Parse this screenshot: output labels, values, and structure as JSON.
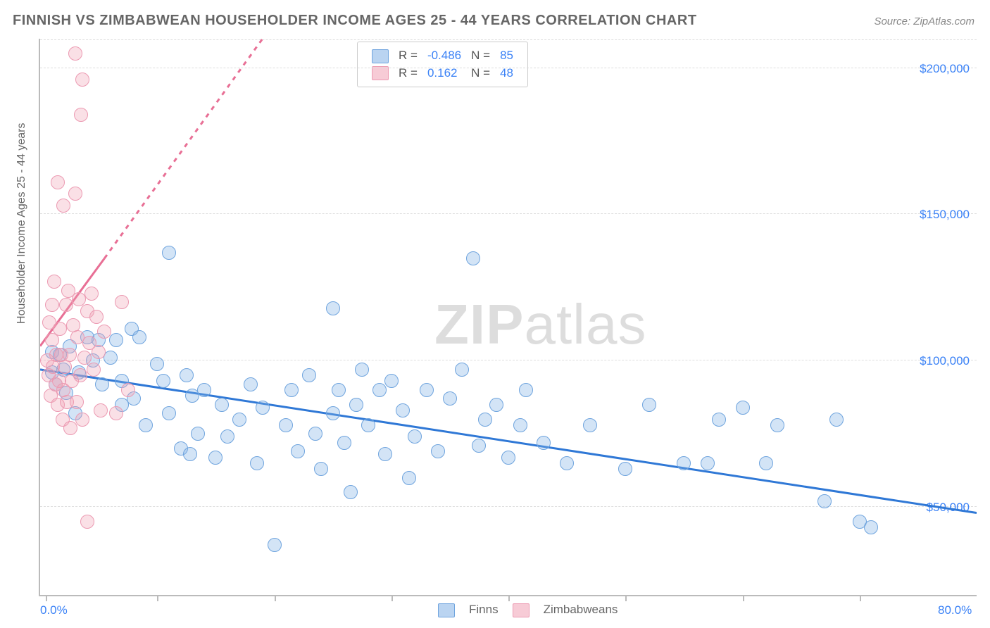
{
  "title": "FINNISH VS ZIMBABWEAN HOUSEHOLDER INCOME AGES 25 - 44 YEARS CORRELATION CHART",
  "source": "Source: ZipAtlas.com",
  "ylabel": "Householder Income Ages 25 - 44 years",
  "watermark_a": "ZIP",
  "watermark_b": "atlas",
  "chart": {
    "type": "scatter",
    "xlim": [
      0,
      80
    ],
    "ylim": [
      20000,
      210000
    ],
    "x_tick_positions": [
      0.5,
      10,
      20,
      30,
      40,
      50,
      60,
      70
    ],
    "x_axis_labels": [
      {
        "v": 0,
        "t": "0.0%"
      },
      {
        "v": 80,
        "t": "80.0%"
      }
    ],
    "y_gridlines": [
      50000,
      100000,
      150000,
      200000
    ],
    "y_axis_labels": [
      "$50,000",
      "$100,000",
      "$150,000",
      "$200,000"
    ],
    "colors": {
      "blue_fill": "#82b1e6",
      "blue_stroke": "#6fa4de",
      "pink_fill": "#f0a0b4",
      "pink_stroke": "#ec9ab2",
      "grid": "#dddddd",
      "axis": "#bbbbbb",
      "accent": "#3b82f6",
      "trend_blue": "#2f78d6",
      "trend_pink": "#e86f95"
    },
    "marker_radius": 9,
    "line_width": 3,
    "series": [
      {
        "name": "Finns",
        "key": "blue",
        "R": "-0.486",
        "N": "85",
        "trend": {
          "x1": 0,
          "y1": 97000,
          "x2": 80,
          "y2": 48000,
          "dashed": false
        },
        "points": [
          [
            1,
            96000
          ],
          [
            1,
            103000
          ],
          [
            1.3,
            92000
          ],
          [
            1.7,
            102000
          ],
          [
            2,
            97000
          ],
          [
            2.2,
            89000
          ],
          [
            2.5,
            105000
          ],
          [
            3,
            82000
          ],
          [
            3.3,
            96000
          ],
          [
            4,
            108000
          ],
          [
            4.5,
            100000
          ],
          [
            5,
            107000
          ],
          [
            5.3,
            92000
          ],
          [
            6,
            101000
          ],
          [
            6.5,
            107000
          ],
          [
            7,
            93000
          ],
          [
            7,
            85000
          ],
          [
            7.8,
            111000
          ],
          [
            8,
            87000
          ],
          [
            8.5,
            108000
          ],
          [
            9,
            78000
          ],
          [
            10,
            99000
          ],
          [
            10.5,
            93000
          ],
          [
            11,
            137000
          ],
          [
            11,
            82000
          ],
          [
            12,
            70000
          ],
          [
            12.5,
            95000
          ],
          [
            12.8,
            68000
          ],
          [
            13,
            88000
          ],
          [
            13.5,
            75000
          ],
          [
            14,
            90000
          ],
          [
            15,
            67000
          ],
          [
            15.5,
            85000
          ],
          [
            16,
            74000
          ],
          [
            17,
            80000
          ],
          [
            18,
            92000
          ],
          [
            18.5,
            65000
          ],
          [
            19,
            84000
          ],
          [
            20,
            37000
          ],
          [
            21,
            78000
          ],
          [
            21.5,
            90000
          ],
          [
            22,
            69000
          ],
          [
            23,
            95000
          ],
          [
            23.5,
            75000
          ],
          [
            24,
            63000
          ],
          [
            25,
            82000
          ],
          [
            25,
            118000
          ],
          [
            25.5,
            90000
          ],
          [
            26,
            72000
          ],
          [
            26.5,
            55000
          ],
          [
            27,
            85000
          ],
          [
            27.5,
            97000
          ],
          [
            28,
            78000
          ],
          [
            29,
            90000
          ],
          [
            29.5,
            68000
          ],
          [
            30,
            93000
          ],
          [
            31,
            83000
          ],
          [
            31.5,
            60000
          ],
          [
            32,
            74000
          ],
          [
            33,
            90000
          ],
          [
            34,
            69000
          ],
          [
            35,
            87000
          ],
          [
            36,
            97000
          ],
          [
            37,
            135000
          ],
          [
            37.5,
            71000
          ],
          [
            38,
            80000
          ],
          [
            39,
            85000
          ],
          [
            40,
            67000
          ],
          [
            41,
            78000
          ],
          [
            41.5,
            90000
          ],
          [
            43,
            72000
          ],
          [
            45,
            65000
          ],
          [
            47,
            78000
          ],
          [
            50,
            63000
          ],
          [
            52,
            85000
          ],
          [
            55,
            65000
          ],
          [
            57,
            65000
          ],
          [
            58,
            80000
          ],
          [
            60,
            84000
          ],
          [
            62,
            65000
          ],
          [
            63,
            78000
          ],
          [
            67,
            52000
          ],
          [
            68,
            80000
          ],
          [
            70,
            45000
          ],
          [
            71,
            43000
          ]
        ]
      },
      {
        "name": "Zimbabweans",
        "key": "pink",
        "R": "0.162",
        "N": "48",
        "trend": {
          "x1": 0,
          "y1": 105000,
          "x2": 5.5,
          "y2": 135000,
          "dashed": false,
          "dash_ext": {
            "x1": 5.5,
            "y1": 135000,
            "x2": 19,
            "y2": 210000
          }
        },
        "points": [
          [
            0.6,
            100000
          ],
          [
            0.7,
            95000
          ],
          [
            0.8,
            113000
          ],
          [
            0.9,
            88000
          ],
          [
            1,
            107000
          ],
          [
            1,
            119000
          ],
          [
            1.1,
            98000
          ],
          [
            1.2,
            127000
          ],
          [
            1.3,
            92000
          ],
          [
            1.4,
            102000
          ],
          [
            1.5,
            85000
          ],
          [
            1.5,
            161000
          ],
          [
            1.6,
            93000
          ],
          [
            1.7,
            111000
          ],
          [
            1.8,
            102000
          ],
          [
            1.9,
            80000
          ],
          [
            2,
            90000
          ],
          [
            2,
            153000
          ],
          [
            2.1,
            98000
          ],
          [
            2.2,
            119000
          ],
          [
            2.3,
            86000
          ],
          [
            2.4,
            124000
          ],
          [
            2.5,
            102000
          ],
          [
            2.6,
            77000
          ],
          [
            2.7,
            93000
          ],
          [
            2.8,
            112000
          ],
          [
            3,
            205000
          ],
          [
            3,
            157000
          ],
          [
            3.1,
            86000
          ],
          [
            3.2,
            108000
          ],
          [
            3.3,
            121000
          ],
          [
            3.4,
            95000
          ],
          [
            3.5,
            184000
          ],
          [
            3.6,
            80000
          ],
          [
            3.6,
            196000
          ],
          [
            3.8,
            101000
          ],
          [
            4,
            117000
          ],
          [
            4,
            45000
          ],
          [
            4.2,
            106000
          ],
          [
            4.4,
            123000
          ],
          [
            4.6,
            97000
          ],
          [
            4.8,
            115000
          ],
          [
            5,
            103000
          ],
          [
            5.2,
            83000
          ],
          [
            5.5,
            110000
          ],
          [
            6.5,
            82000
          ],
          [
            7,
            120000
          ],
          [
            7.5,
            90000
          ]
        ]
      }
    ]
  },
  "legend_bottom": [
    {
      "k": "blue",
      "t": "Finns"
    },
    {
      "k": "pink",
      "t": "Zimbabweans"
    }
  ]
}
